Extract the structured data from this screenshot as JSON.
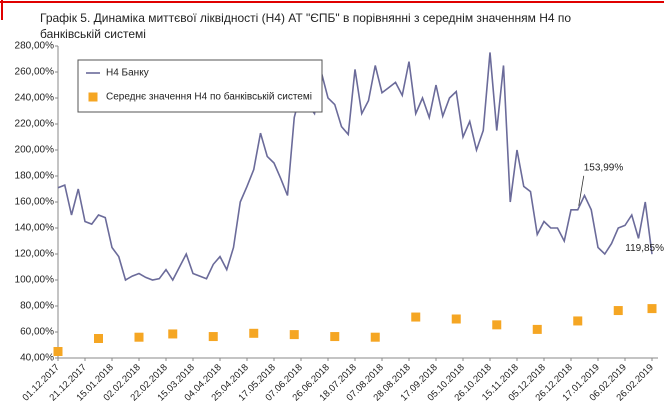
{
  "chart_data": {
    "type": "line",
    "title": "Графік 5. Динаміка миттєвої ліквідності (Н4) АТ \"ЄПБ\" в порівнянні з середнім значенням Н4 по банківській системі",
    "categories": [
      "01.12.2017",
      null,
      null,
      null,
      "21.12.2017",
      null,
      null,
      null,
      "15.01.2018",
      null,
      null,
      null,
      "02.02.2018",
      null,
      null,
      null,
      "22.02.2018",
      null,
      null,
      null,
      "15.03.2018",
      null,
      null,
      null,
      "04.04.2018",
      null,
      null,
      null,
      "25.04.2018",
      null,
      null,
      null,
      "17.05.2018",
      null,
      null,
      null,
      "07.06.2018",
      null,
      null,
      null,
      "26.06.2018",
      null,
      null,
      null,
      "18.07.2018",
      null,
      null,
      null,
      "07.08.2018",
      null,
      null,
      null,
      "28.08.2018",
      null,
      null,
      null,
      "17.09.2018",
      null,
      null,
      null,
      "05.10.2018",
      null,
      null,
      null,
      "26.10.2018",
      null,
      null,
      null,
      "15.11.2018",
      null,
      null,
      null,
      "05.12.2018",
      null,
      null,
      null,
      "26.12.2018",
      null,
      null,
      null,
      "17.01.2019",
      null,
      null,
      null,
      "06.02.2019",
      null,
      null,
      null,
      "26.02.2019"
    ],
    "series": [
      {
        "name": "Н4 Банку",
        "type": "line",
        "color": "#6b6b9a",
        "values": [
          171,
          173,
          150,
          170,
          145,
          143,
          150,
          148,
          125,
          118,
          100,
          103,
          105,
          102,
          100,
          101,
          108,
          100,
          110,
          120,
          105,
          103,
          101,
          112,
          118,
          108,
          125,
          160,
          172,
          185,
          213,
          195,
          190,
          178,
          165,
          225,
          245,
          235,
          228,
          260,
          240,
          235,
          218,
          212,
          262,
          228,
          238,
          265,
          244,
          248,
          252,
          242,
          268,
          228,
          240,
          225,
          250,
          226,
          240,
          245,
          210,
          222,
          200,
          215,
          275,
          215,
          265,
          160,
          200,
          172,
          168,
          135,
          145,
          140,
          140,
          130,
          154,
          153.99,
          165,
          154,
          125,
          120,
          128,
          140,
          142,
          150,
          132,
          160,
          119.85
        ],
        "value_labels": [
          null,
          null,
          null,
          null,
          null,
          null,
          null,
          null,
          null,
          null,
          null,
          null,
          null,
          null,
          null,
          null,
          null,
          null,
          null,
          null,
          null,
          null,
          null,
          null,
          null,
          null,
          null,
          null,
          null,
          null,
          null,
          null,
          null,
          null,
          null,
          null,
          null,
          null,
          null,
          null,
          null,
          null,
          null,
          null,
          null,
          null,
          null,
          null,
          null,
          null,
          null,
          null,
          null,
          null,
          null,
          null,
          null,
          null,
          null,
          null,
          null,
          null,
          null,
          null,
          null,
          null,
          null,
          null,
          null,
          null,
          null,
          null,
          null,
          null,
          null,
          null,
          null,
          "153,99%",
          null,
          null,
          null,
          null,
          null,
          null,
          null,
          null,
          null,
          null,
          "119,85%"
        ]
      },
      {
        "name": "Середнє значення Н4 по банківській системі",
        "type": "scatter",
        "color": "#f5a623",
        "values": [
          45,
          null,
          null,
          null,
          null,
          null,
          55,
          null,
          null,
          null,
          null,
          null,
          56,
          null,
          null,
          null,
          null,
          58.5,
          null,
          null,
          null,
          null,
          null,
          56.5,
          null,
          null,
          null,
          null,
          null,
          59,
          null,
          null,
          null,
          null,
          null,
          58,
          null,
          null,
          null,
          null,
          null,
          56.5,
          null,
          null,
          null,
          null,
          null,
          56,
          null,
          null,
          null,
          null,
          null,
          71.5,
          null,
          null,
          null,
          null,
          null,
          70,
          null,
          null,
          null,
          null,
          null,
          65.5,
          null,
          null,
          null,
          null,
          null,
          62,
          null,
          null,
          null,
          null,
          null,
          68.5,
          null,
          null,
          null,
          null,
          null,
          76.5,
          null,
          null,
          null,
          null,
          78
        ]
      }
    ],
    "ylim": [
      40,
      280
    ],
    "yticks": [
      {
        "value": 40,
        "label": "40,00%"
      },
      {
        "value": 60,
        "label": "60,00%"
      },
      {
        "value": 80,
        "label": "80,00%"
      },
      {
        "value": 100,
        "label": "100,00%"
      },
      {
        "value": 120,
        "label": "120,00%"
      },
      {
        "value": 140,
        "label": "140,00%"
      },
      {
        "value": 160,
        "label": "160,00%"
      },
      {
        "value": 180,
        "label": "180,00%"
      },
      {
        "value": 200,
        "label": "200,00%"
      },
      {
        "value": 220,
        "label": "220,00%"
      },
      {
        "value": 240,
        "label": "240,00%"
      },
      {
        "value": 260,
        "label": "260,00%"
      },
      {
        "value": 280,
        "label": "280,00%"
      }
    ],
    "grid": false,
    "legend": "upper-left"
  }
}
